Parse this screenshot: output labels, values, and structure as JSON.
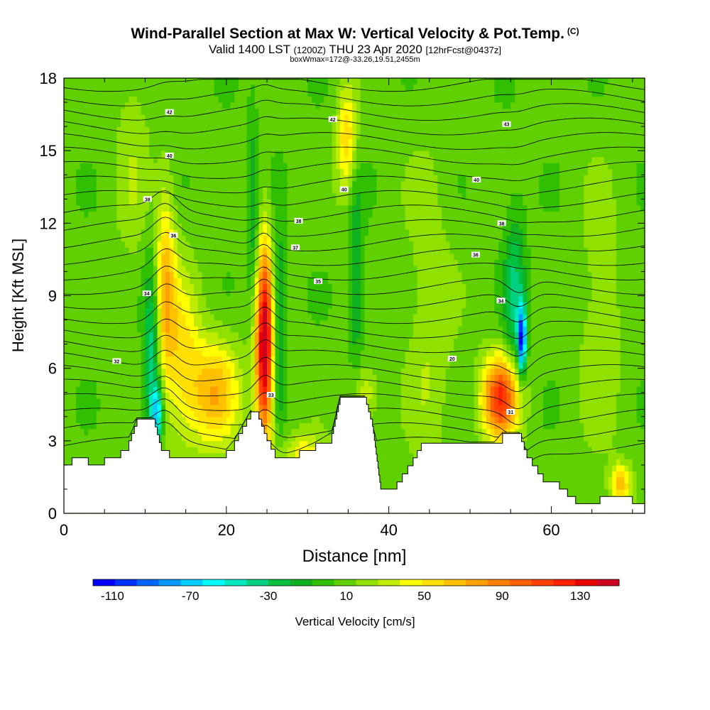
{
  "header": {
    "title": "Wind-Parallel Section at Max W: Vertical Velocity & Pot.Temp.",
    "copyright": "(C)",
    "valid_main": "Valid 1400 LST",
    "valid_utc": "(1200Z)",
    "valid_date": "THU 23 Apr 2020",
    "forecast": "[12hrFcst@0437z]",
    "box_info": "boxWmax=172@-33.26,19.51,2455m"
  },
  "chart_data": {
    "type": "heatmap",
    "xlabel": "Distance [nm]",
    "ylabel": "Height [Kft MSL]",
    "xlim": [
      0,
      71.5
    ],
    "ylim": [
      0,
      18
    ],
    "x_ticks": [
      0,
      20,
      40,
      60
    ],
    "y_ticks": [
      0,
      3,
      6,
      9,
      12,
      15,
      18
    ],
    "colorbar": {
      "label": "Vertical Velocity [cm/s]",
      "min": -120,
      "max": 150,
      "tick_values": [
        -110,
        -70,
        -30,
        10,
        50,
        90,
        130
      ],
      "tick_labels": [
        "-110",
        "-70",
        "-30",
        "10",
        "50",
        "90",
        "130"
      ],
      "colors": [
        "#0000ff",
        "#0033ff",
        "#0066ff",
        "#0099ff",
        "#00ccff",
        "#00ffff",
        "#00e8c0",
        "#00d080",
        "#00c040",
        "#10b020",
        "#30c000",
        "#60d000",
        "#90e000",
        "#c0ec00",
        "#ffff00",
        "#ffe000",
        "#ffc000",
        "#ffa000",
        "#ff8000",
        "#ff6000",
        "#ff4000",
        "#ff2000",
        "#e80000",
        "#d00020"
      ]
    },
    "terrain": [
      [
        0,
        2
      ],
      [
        1,
        2.3
      ],
      [
        3,
        2
      ],
      [
        5,
        2.3
      ],
      [
        7,
        2.6
      ],
      [
        8,
        3
      ],
      [
        9,
        3.9
      ],
      [
        11,
        3.9
      ],
      [
        12,
        2.6
      ],
      [
        13,
        2.3
      ],
      [
        20,
        2.6
      ],
      [
        21,
        3
      ],
      [
        22,
        3.6
      ],
      [
        23,
        4.2
      ],
      [
        24,
        3.9
      ],
      [
        25,
        3
      ],
      [
        26,
        2.3
      ],
      [
        29,
        2.6
      ],
      [
        31,
        2.9
      ],
      [
        33,
        3.3
      ],
      [
        34,
        4.8
      ],
      [
        37,
        4.8
      ],
      [
        38,
        3.6
      ],
      [
        39,
        1
      ],
      [
        41,
        1.3
      ],
      [
        43,
        2.3
      ],
      [
        44,
        2.9
      ],
      [
        53,
        2.9
      ],
      [
        54,
        3.3
      ],
      [
        56,
        3.3
      ],
      [
        57,
        2.3
      ],
      [
        59,
        1.3
      ],
      [
        61,
        1
      ],
      [
        63,
        0.4
      ],
      [
        66,
        0.7
      ],
      [
        69,
        0.7
      ],
      [
        70,
        0.4
      ],
      [
        71.5,
        0.4
      ]
    ],
    "w_features": [
      {
        "x": 12.5,
        "z": 9.5,
        "sx": 0.9,
        "sz": 2.8,
        "w": 55
      },
      {
        "x": 14.5,
        "z": 6.5,
        "sx": 1.6,
        "sz": 2.5,
        "w": 40
      },
      {
        "x": 18.5,
        "z": 5.0,
        "sx": 2.2,
        "sz": 1.6,
        "w": 60
      },
      {
        "x": 10.8,
        "z": 6.5,
        "sx": 0.7,
        "sz": 2.8,
        "w": -50
      },
      {
        "x": 11.5,
        "z": 4.2,
        "sx": 0.5,
        "sz": 0.8,
        "w": -70
      },
      {
        "x": 24.7,
        "z": 6.5,
        "sx": 0.8,
        "sz": 2.6,
        "w": 130
      },
      {
        "x": 24.8,
        "z": 9.5,
        "sx": 0.6,
        "sz": 2.5,
        "w": 30
      },
      {
        "x": 26.4,
        "z": 8.0,
        "sx": 0.6,
        "sz": 3.0,
        "w": -35
      },
      {
        "x": 23.3,
        "z": 12.5,
        "sx": 0.5,
        "sz": 3.0,
        "w": -25
      },
      {
        "x": 34.8,
        "z": 15.5,
        "sx": 0.9,
        "sz": 1.5,
        "w": 50
      },
      {
        "x": 36.0,
        "z": 10.0,
        "sx": 0.6,
        "sz": 3.0,
        "w": -30
      },
      {
        "x": 37.0,
        "z": 5.0,
        "sx": 1.2,
        "sz": 0.8,
        "w": 30
      },
      {
        "x": 53.8,
        "z": 4.8,
        "sx": 1.6,
        "sz": 1.2,
        "w": 110
      },
      {
        "x": 56.4,
        "z": 7.2,
        "sx": 0.35,
        "sz": 1.0,
        "w": -110
      },
      {
        "x": 55.5,
        "z": 9.0,
        "sx": 0.9,
        "sz": 2.5,
        "w": -40
      },
      {
        "x": 68.5,
        "z": 1.2,
        "sx": 0.9,
        "sz": 0.6,
        "w": 55
      },
      {
        "x": 29.5,
        "z": 2.5,
        "sx": 2.0,
        "sz": 0.6,
        "w": 35
      },
      {
        "x": 8.5,
        "z": 15.0,
        "sx": 1.5,
        "sz": 4.0,
        "w": 15
      },
      {
        "x": 45.0,
        "z": 7.5,
        "sx": 2.0,
        "sz": 5.0,
        "w": 18
      },
      {
        "x": 66.0,
        "z": 8.0,
        "sx": 2.0,
        "sz": 4.0,
        "w": 15
      }
    ],
    "isentrope_labels": [
      {
        "x": 13,
        "z": 16.6,
        "text": "42"
      },
      {
        "x": 13,
        "z": 14.8,
        "text": "40"
      },
      {
        "x": 10.3,
        "z": 13.0,
        "text": "38"
      },
      {
        "x": 13.5,
        "z": 11.5,
        "text": "36"
      },
      {
        "x": 10.2,
        "z": 9.1,
        "text": "34"
      },
      {
        "x": 6.5,
        "z": 6.3,
        "text": "32"
      },
      {
        "x": 33.1,
        "z": 16.3,
        "text": "42"
      },
      {
        "x": 34.5,
        "z": 13.4,
        "text": "40"
      },
      {
        "x": 28.9,
        "z": 12.1,
        "text": "38"
      },
      {
        "x": 28.5,
        "z": 11.0,
        "text": "37"
      },
      {
        "x": 31.3,
        "z": 9.6,
        "text": "35"
      },
      {
        "x": 25.5,
        "z": 4.9,
        "text": "33"
      },
      {
        "x": 54.5,
        "z": 16.1,
        "text": "43"
      },
      {
        "x": 50.8,
        "z": 13.8,
        "text": "40"
      },
      {
        "x": 53.9,
        "z": 12.0,
        "text": "38"
      },
      {
        "x": 50.7,
        "z": 10.7,
        "text": "36"
      },
      {
        "x": 53.8,
        "z": 8.8,
        "text": "34"
      },
      {
        "x": 47.8,
        "z": 6.4,
        "text": "20"
      },
      {
        "x": 55.0,
        "z": 4.2,
        "text": "31"
      }
    ]
  }
}
